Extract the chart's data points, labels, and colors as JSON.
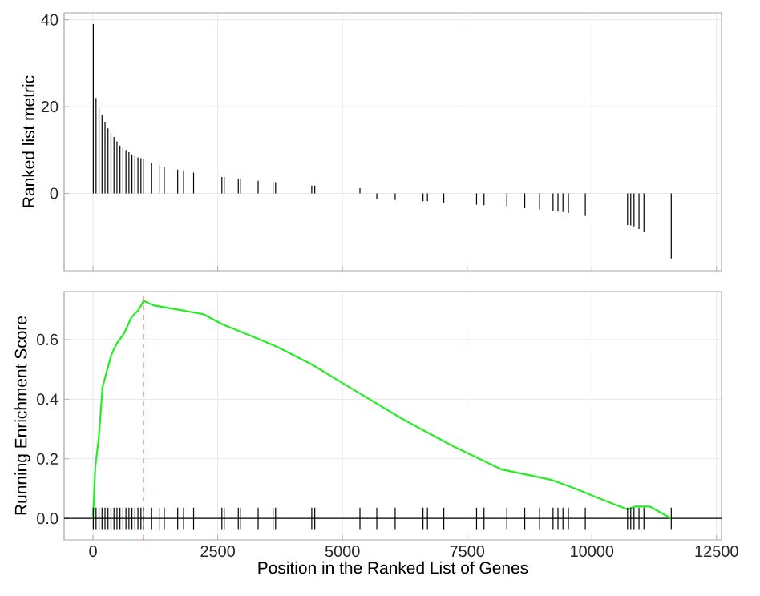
{
  "chart_data": [
    {
      "type": "bar",
      "ylabel": "Ranked list metric",
      "xlim": [
        -580,
        12600
      ],
      "xticks": [
        0,
        2500,
        5000,
        7500,
        10000,
        12500
      ],
      "ylim": [
        -17.8,
        41.6
      ],
      "yticks": [
        0,
        20,
        40
      ],
      "grid": true,
      "tick_labels": "y",
      "color": "#000000",
      "x": [
        5,
        60,
        120,
        180,
        240,
        300,
        360,
        420,
        480,
        540,
        600,
        660,
        720,
        780,
        840,
        900,
        960,
        1015,
        1169,
        1339,
        1428,
        1697,
        1816,
        2016,
        2583,
        2630,
        2912,
        2960,
        3310,
        3609,
        3660,
        4385,
        4445,
        5351,
        5689,
        6057,
        6615,
        6704,
        7032,
        7689,
        7838,
        8296,
        8655,
        8953,
        9222,
        9321,
        9421,
        9530,
        9869,
        10716,
        10780,
        10845,
        10945,
        11045,
        11592
      ],
      "values": [
        39,
        22,
        20,
        18,
        16.5,
        15,
        14,
        13,
        12,
        11,
        10.5,
        10,
        9.5,
        9,
        8.6,
        8.3,
        8.1,
        8,
        7,
        6.5,
        6.2,
        5.5,
        5.3,
        4.8,
        3.8,
        3.8,
        3.4,
        3.4,
        2.9,
        2.6,
        2.6,
        1.8,
        1.8,
        1.2,
        -1.3,
        -1.5,
        -1.8,
        -1.8,
        -2.3,
        -2.6,
        -2.7,
        -3.0,
        -3.4,
        -3.7,
        -4.1,
        -4.2,
        -4.3,
        -4.5,
        -5.2,
        -7.3,
        -7.4,
        -7.6,
        -8.2,
        -8.8,
        -15
      ]
    },
    {
      "type": "line",
      "xlabel": "Position in the Ranked List of Genes",
      "ylabel": "Running Enrichment Score",
      "xlim": [
        -580,
        12600
      ],
      "xticks": [
        0,
        2500,
        5000,
        7500,
        10000,
        12500
      ],
      "ylim": [
        -0.072,
        0.761
      ],
      "yticks": [
        {
          "value": 0,
          "label": "0.0"
        },
        0.2,
        0.4,
        0.6
      ],
      "grid": true,
      "ref_lines": [
        {
          "axis": "x",
          "value": 1015,
          "color": "#e41a1c",
          "line_style": "dashed"
        },
        {
          "axis": "y",
          "value": 0,
          "color": "#000000",
          "line_style": "solid"
        }
      ],
      "series": [
        {
          "type": "line",
          "color": "#22ee22",
          "x": [
            0,
            45,
            120,
            190,
            270,
            370,
            470,
            620,
            770,
            915,
            1015,
            1210,
            1710,
            2210,
            2610,
            3205,
            3700,
            4400,
            5195,
            6190,
            7185,
            8180,
            9175,
            9670,
            10170,
            10715,
            10865,
            11160,
            11590
          ],
          "values": [
            0,
            0.17,
            0.28,
            0.44,
            0.49,
            0.55,
            0.585,
            0.62,
            0.675,
            0.7,
            0.73,
            0.715,
            0.7,
            0.685,
            0.65,
            0.61,
            0.575,
            0.515,
            0.435,
            0.335,
            0.245,
            0.165,
            0.13,
            0.1,
            0.066,
            0.03,
            0.04,
            0.04,
            0
          ]
        },
        {
          "type": "bar",
          "color": "#000000",
          "x": [
            5,
            60,
            120,
            180,
            240,
            300,
            360,
            420,
            480,
            540,
            600,
            660,
            720,
            780,
            840,
            900,
            960,
            1015,
            1169,
            1339,
            1428,
            1697,
            1816,
            2016,
            2583,
            2630,
            2912,
            2960,
            3310,
            3609,
            3660,
            4385,
            4445,
            5351,
            5689,
            6057,
            6615,
            6704,
            7032,
            7689,
            7838,
            8296,
            8655,
            8953,
            9222,
            9321,
            9421,
            9530,
            9869,
            10716,
            10780,
            10845,
            10945,
            11045,
            11592
          ],
          "base": [
            -0.036,
            -0.036,
            -0.036,
            -0.036,
            -0.036,
            -0.036,
            -0.036,
            -0.036,
            -0.036,
            -0.036,
            -0.036,
            -0.036,
            -0.036,
            -0.036,
            -0.036,
            -0.036,
            -0.036,
            -0.036,
            -0.036,
            -0.036,
            -0.036,
            -0.036,
            -0.036,
            -0.036,
            -0.036,
            -0.036,
            -0.036,
            -0.036,
            -0.036,
            -0.036,
            -0.036,
            -0.036,
            -0.036,
            -0.036,
            -0.036,
            -0.036,
            -0.036,
            -0.036,
            -0.036,
            -0.036,
            -0.036,
            -0.036,
            -0.036,
            -0.036,
            -0.036,
            -0.036,
            -0.036,
            -0.036,
            -0.036,
            -0.036,
            -0.036,
            -0.036,
            -0.036,
            -0.036,
            -0.036
          ],
          "values": [
            0.072,
            0.072,
            0.072,
            0.072,
            0.072,
            0.072,
            0.072,
            0.072,
            0.072,
            0.072,
            0.072,
            0.072,
            0.072,
            0.072,
            0.072,
            0.072,
            0.072,
            0.072,
            0.072,
            0.072,
            0.072,
            0.072,
            0.072,
            0.072,
            0.072,
            0.072,
            0.072,
            0.072,
            0.072,
            0.072,
            0.072,
            0.072,
            0.072,
            0.072,
            0.072,
            0.072,
            0.072,
            0.072,
            0.072,
            0.072,
            0.072,
            0.072,
            0.072,
            0.072,
            0.072,
            0.072,
            0.072,
            0.072,
            0.072,
            0.072,
            0.072,
            0.072,
            0.072,
            0.072,
            0.072
          ]
        }
      ]
    }
  ]
}
